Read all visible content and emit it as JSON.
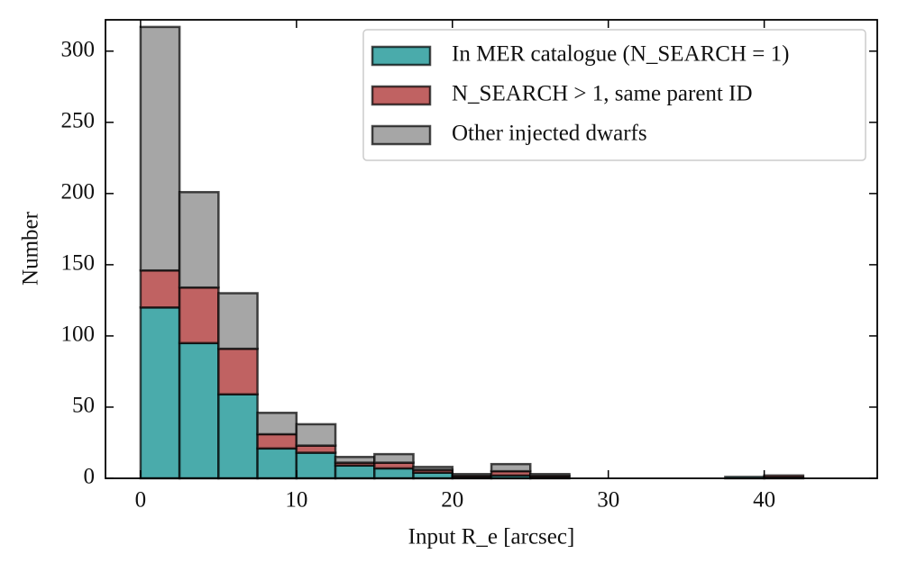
{
  "chart_data": {
    "type": "histogram",
    "xlabel": "Input R_e [arcsec]",
    "ylabel": "Number",
    "bins": [
      0,
      2.5,
      5,
      7.5,
      10,
      12.5,
      15,
      17.5,
      20,
      22.5,
      25,
      27.5,
      30,
      32.5,
      35,
      37.5,
      40,
      42.5,
      45
    ],
    "series": [
      {
        "name": "In MER catalogue (N_SEARCH = 1)",
        "color": "#4aabab",
        "values": [
          120,
          95,
          59,
          21,
          18,
          9,
          7,
          4,
          1,
          2,
          1,
          0,
          0,
          0,
          0,
          1,
          1,
          0
        ]
      },
      {
        "name": "N_SEARCH > 1, same parent ID",
        "color": "#c06262",
        "values": [
          26,
          39,
          32,
          10,
          5,
          2,
          4,
          2,
          1,
          3,
          1,
          0,
          0,
          0,
          0,
          0,
          1,
          0
        ]
      },
      {
        "name": "Other injected dwarfs",
        "color": "#a6a6a6",
        "values": [
          171,
          67,
          39,
          15,
          15,
          4,
          6,
          2,
          1,
          5,
          1,
          0,
          0,
          0,
          0,
          0,
          0,
          0
        ]
      }
    ],
    "xlim": [
      -2.25,
      47.25
    ],
    "ylim": [
      0,
      322
    ],
    "xticks": [
      0,
      10,
      20,
      30,
      40
    ],
    "yticks": [
      0,
      50,
      100,
      150,
      200,
      250,
      300
    ],
    "legend": "upper right"
  }
}
